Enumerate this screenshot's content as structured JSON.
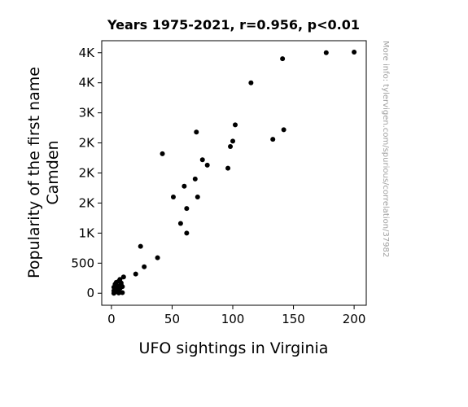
{
  "chart_data": {
    "type": "scatter",
    "title": "Years 1975-2021, r=0.956, p<0.01",
    "xlabel": "UFO sightings in Virginia",
    "ylabel_lines": [
      "Popularity of the first name",
      "Camden"
    ],
    "side_note": "More info: tylervigen.com/spurious/correlation/37982",
    "xlim": [
      -8,
      210
    ],
    "ylim": [
      -200,
      4200
    ],
    "x_ticks": [
      {
        "value": 0,
        "label": "0"
      },
      {
        "value": 50,
        "label": "50"
      },
      {
        "value": 100,
        "label": "100"
      },
      {
        "value": 150,
        "label": "150"
      },
      {
        "value": 200,
        "label": "200"
      }
    ],
    "y_ticks": [
      {
        "value": 0,
        "label": "0"
      },
      {
        "value": 500,
        "label": "500"
      },
      {
        "value": 1000,
        "label": "1K"
      },
      {
        "value": 1500,
        "label": "2K"
      },
      {
        "value": 2000,
        "label": "2K"
      },
      {
        "value": 2500,
        "label": "2K"
      },
      {
        "value": 3000,
        "label": "3K"
      },
      {
        "value": 3500,
        "label": "4K"
      },
      {
        "value": 4000,
        "label": "4K"
      }
    ],
    "grid": false,
    "marker_color": "#000000",
    "points": [
      {
        "x": 2,
        "y": 0
      },
      {
        "x": 3,
        "y": 20
      },
      {
        "x": 4,
        "y": 50
      },
      {
        "x": 2,
        "y": 100
      },
      {
        "x": 5,
        "y": 120
      },
      {
        "x": 3,
        "y": 150
      },
      {
        "x": 6,
        "y": 30
      },
      {
        "x": 7,
        "y": 80
      },
      {
        "x": 8,
        "y": 140
      },
      {
        "x": 9,
        "y": 10
      },
      {
        "x": 4,
        "y": 180
      },
      {
        "x": 6,
        "y": 200
      },
      {
        "x": 7,
        "y": 230
      },
      {
        "x": 5,
        "y": 60
      },
      {
        "x": 3,
        "y": 90
      },
      {
        "x": 8,
        "y": 170
      },
      {
        "x": 10,
        "y": 270
      },
      {
        "x": 9,
        "y": 110
      },
      {
        "x": 2,
        "y": 40
      },
      {
        "x": 6,
        "y": 5
      },
      {
        "x": 20,
        "y": 320
      },
      {
        "x": 27,
        "y": 440
      },
      {
        "x": 24,
        "y": 780
      },
      {
        "x": 38,
        "y": 590
      },
      {
        "x": 42,
        "y": 2320
      },
      {
        "x": 51,
        "y": 1600
      },
      {
        "x": 57,
        "y": 1160
      },
      {
        "x": 60,
        "y": 1780
      },
      {
        "x": 62,
        "y": 1000
      },
      {
        "x": 62,
        "y": 1410
      },
      {
        "x": 69,
        "y": 1900
      },
      {
        "x": 70,
        "y": 2680
      },
      {
        "x": 71,
        "y": 1600
      },
      {
        "x": 75,
        "y": 2220
      },
      {
        "x": 79,
        "y": 2130
      },
      {
        "x": 96,
        "y": 2080
      },
      {
        "x": 98,
        "y": 2440
      },
      {
        "x": 100,
        "y": 2530
      },
      {
        "x": 102,
        "y": 2800
      },
      {
        "x": 115,
        "y": 3500
      },
      {
        "x": 133,
        "y": 2560
      },
      {
        "x": 141,
        "y": 3900
      },
      {
        "x": 142,
        "y": 2720
      },
      {
        "x": 177,
        "y": 4000
      },
      {
        "x": 200,
        "y": 4010
      }
    ]
  }
}
